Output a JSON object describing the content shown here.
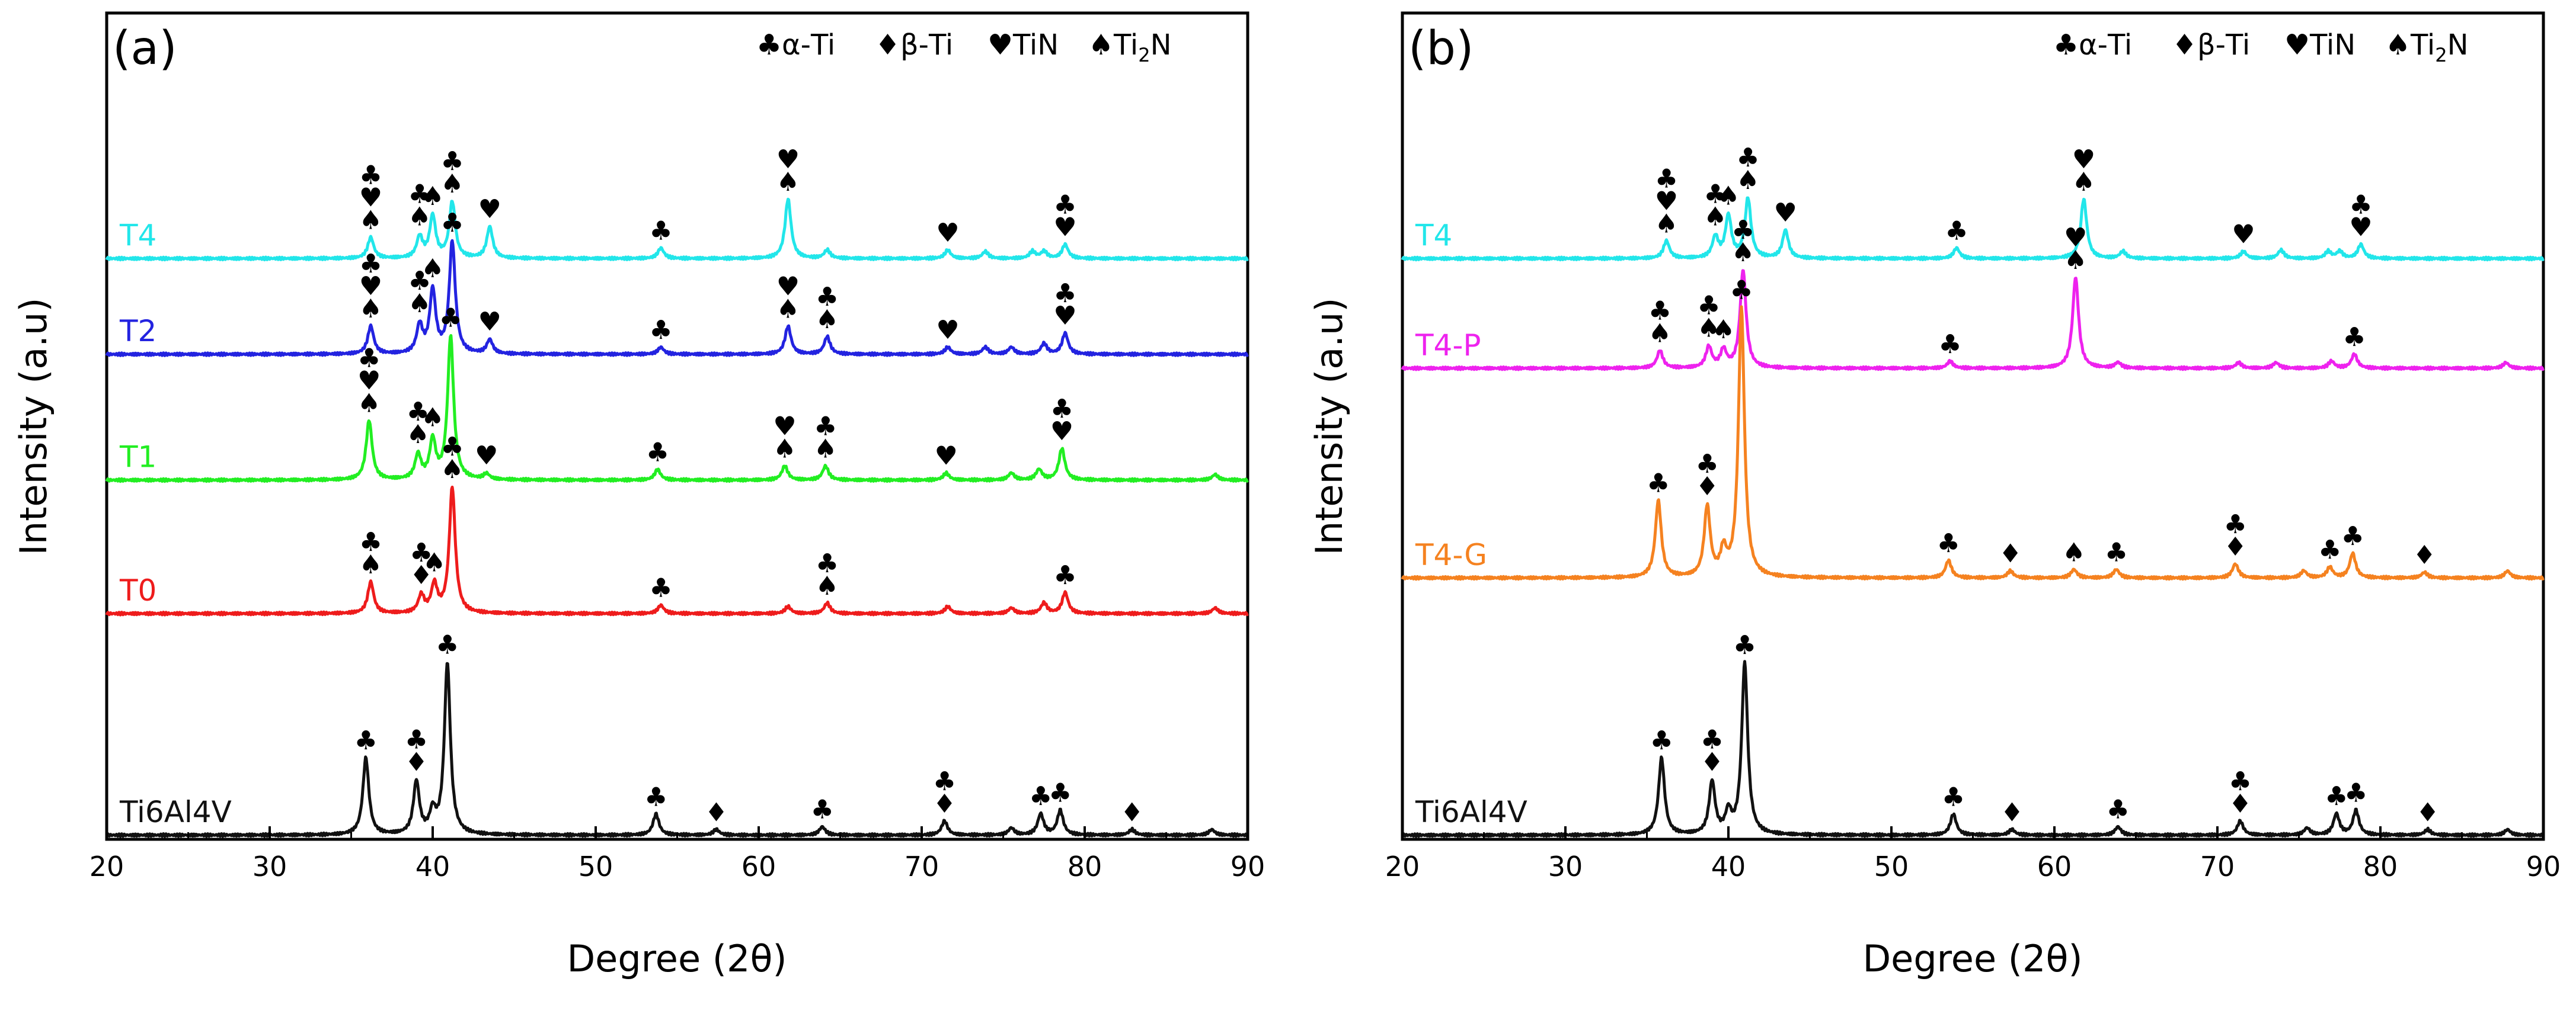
{
  "chart_data": [
    {
      "type": "line",
      "panel": "(a)",
      "xlabel": "Degree (2θ)",
      "ylabel": "Intensity (a.u)",
      "xlim": [
        20,
        90
      ],
      "xticks": [
        "20",
        "30",
        "40",
        "50",
        "60",
        "70",
        "80",
        "90"
      ],
      "legend": [
        {
          "symbol": "♣",
          "label": "α-Ti"
        },
        {
          "symbol": "♦",
          "label": "β-Ti"
        },
        {
          "symbol": "♥",
          "label": "TiN"
        },
        {
          "symbol": "♠",
          "label": "Ti2N"
        }
      ],
      "series": [
        {
          "name": "T4",
          "color": "#22e6ea",
          "baseline": 0.825,
          "peaks": [
            [
              36.2,
              0.03
            ],
            [
              39.2,
              0.03
            ],
            [
              40.0,
              0.06
            ],
            [
              41.2,
              0.08
            ],
            [
              43.5,
              0.045
            ],
            [
              54.0,
              0.015
            ],
            [
              61.8,
              0.085
            ],
            [
              64.2,
              0.012
            ],
            [
              71.6,
              0.012
            ],
            [
              73.9,
              0.01
            ],
            [
              76.8,
              0.01
            ],
            [
              77.5,
              0.01
            ],
            [
              78.8,
              0.02
            ]
          ],
          "markers": [
            [
              36.2,
              "♣♥♠"
            ],
            [
              39.2,
              "♣♠"
            ],
            [
              40.0,
              "♠"
            ],
            [
              41.2,
              "♣♠"
            ],
            [
              43.5,
              "♥"
            ],
            [
              54.0,
              "♣"
            ],
            [
              61.8,
              "♥♠"
            ],
            [
              71.6,
              "♥"
            ],
            [
              78.8,
              "♣♥"
            ]
          ]
        },
        {
          "name": "T2",
          "color": "#2323e0",
          "baseline": 0.688,
          "peaks": [
            [
              36.2,
              0.04
            ],
            [
              39.2,
              0.04
            ],
            [
              40.0,
              0.09
            ],
            [
              41.2,
              0.16
            ],
            [
              43.5,
              0.02
            ],
            [
              54.0,
              0.01
            ],
            [
              61.8,
              0.04
            ],
            [
              64.2,
              0.025
            ],
            [
              71.6,
              0.01
            ],
            [
              73.9,
              0.01
            ],
            [
              75.5,
              0.01
            ],
            [
              77.5,
              0.015
            ],
            [
              78.8,
              0.03
            ]
          ],
          "markers": [
            [
              36.2,
              "♣♥♠"
            ],
            [
              39.2,
              "♣♠"
            ],
            [
              40.0,
              "♠"
            ],
            [
              41.2,
              "♣"
            ],
            [
              43.5,
              "♥"
            ],
            [
              54.0,
              "♣"
            ],
            [
              61.8,
              "♥♠"
            ],
            [
              64.2,
              "♣♠"
            ],
            [
              71.6,
              "♥"
            ],
            [
              78.8,
              "♣♥"
            ]
          ]
        },
        {
          "name": "T1",
          "color": "#22ee22",
          "baseline": 0.508,
          "peaks": [
            [
              36.1,
              0.085
            ],
            [
              39.1,
              0.035
            ],
            [
              40.0,
              0.055
            ],
            [
              41.1,
              0.205
            ],
            [
              43.3,
              0.008
            ],
            [
              53.8,
              0.015
            ],
            [
              61.6,
              0.02
            ],
            [
              64.1,
              0.02
            ],
            [
              71.5,
              0.01
            ],
            [
              75.5,
              0.01
            ],
            [
              77.2,
              0.015
            ],
            [
              78.6,
              0.045
            ],
            [
              88.0,
              0.008
            ]
          ],
          "markers": [
            [
              36.1,
              "♣♥♠"
            ],
            [
              39.1,
              "♣♠"
            ],
            [
              40.0,
              "♠"
            ],
            [
              41.1,
              "♣"
            ],
            [
              43.3,
              "♥"
            ],
            [
              53.8,
              "♣"
            ],
            [
              61.6,
              "♥♠"
            ],
            [
              64.1,
              "♣♠"
            ],
            [
              71.5,
              "♥"
            ],
            [
              78.6,
              "♣♥"
            ]
          ]
        },
        {
          "name": "T0",
          "color": "#ee1c1c",
          "baseline": 0.317,
          "peaks": [
            [
              36.2,
              0.045
            ],
            [
              39.3,
              0.025
            ],
            [
              40.1,
              0.04
            ],
            [
              41.2,
              0.18
            ],
            [
              54.0,
              0.012
            ],
            [
              61.8,
              0.01
            ],
            [
              64.2,
              0.015
            ],
            [
              71.6,
              0.01
            ],
            [
              75.5,
              0.008
            ],
            [
              77.5,
              0.015
            ],
            [
              78.8,
              0.03
            ],
            [
              88.0,
              0.008
            ]
          ],
          "markers": [
            [
              36.2,
              "♣♠"
            ],
            [
              39.3,
              "♣♦"
            ],
            [
              40.1,
              "♠"
            ],
            [
              41.2,
              "♣♠"
            ],
            [
              54.0,
              "♣"
            ],
            [
              64.2,
              "♣♠"
            ],
            [
              78.8,
              "♣"
            ]
          ]
        },
        {
          "name": "Ti6Al4V",
          "color": "#111111",
          "baseline": 0.0,
          "peaks": [
            [
              35.9,
              0.11
            ],
            [
              39.0,
              0.075
            ],
            [
              40.0,
              0.03
            ],
            [
              40.9,
              0.245
            ],
            [
              53.7,
              0.03
            ],
            [
              57.4,
              0.008
            ],
            [
              63.9,
              0.012
            ],
            [
              71.4,
              0.02
            ],
            [
              75.5,
              0.01
            ],
            [
              77.3,
              0.03
            ],
            [
              78.5,
              0.035
            ],
            [
              82.9,
              0.008
            ],
            [
              87.8,
              0.008
            ]
          ],
          "markers": [
            [
              35.9,
              "♣"
            ],
            [
              39.0,
              "♣♦"
            ],
            [
              40.9,
              "♣"
            ],
            [
              53.7,
              "♣"
            ],
            [
              57.4,
              "♦"
            ],
            [
              63.9,
              "♣"
            ],
            [
              71.4,
              "♣♦"
            ],
            [
              77.3,
              "♣"
            ],
            [
              78.5,
              "♣"
            ],
            [
              82.9,
              "♦"
            ]
          ]
        }
      ]
    },
    {
      "type": "line",
      "panel": "(b)",
      "xlabel": "Degree (2θ)",
      "ylabel": "Intensity (a.u)",
      "xlim": [
        20,
        90
      ],
      "xticks": [
        "20",
        "30",
        "40",
        "50",
        "60",
        "70",
        "80",
        "90"
      ],
      "legend": [
        {
          "symbol": "♣",
          "label": "α-Ti"
        },
        {
          "symbol": "♦",
          "label": "β-Ti"
        },
        {
          "symbol": "♥",
          "label": "TiN"
        },
        {
          "symbol": "♠",
          "label": "Ti2N"
        }
      ],
      "series": [
        {
          "name": "T4",
          "color": "#22e6ea",
          "baseline": 0.825,
          "peaks": [
            [
              36.2,
              0.025
            ],
            [
              39.2,
              0.03
            ],
            [
              40.0,
              0.06
            ],
            [
              41.2,
              0.085
            ],
            [
              43.5,
              0.04
            ],
            [
              54.0,
              0.015
            ],
            [
              61.8,
              0.085
            ],
            [
              64.2,
              0.01
            ],
            [
              71.6,
              0.01
            ],
            [
              73.9,
              0.012
            ],
            [
              76.8,
              0.01
            ],
            [
              77.5,
              0.01
            ],
            [
              78.8,
              0.02
            ]
          ],
          "markers": [
            [
              36.2,
              "♣♥♠"
            ],
            [
              39.2,
              "♣♠"
            ],
            [
              40.0,
              "♠"
            ],
            [
              41.2,
              "♣♠"
            ],
            [
              43.5,
              "♥"
            ],
            [
              54.0,
              "♣"
            ],
            [
              61.8,
              "♥♠"
            ],
            [
              71.6,
              "♥"
            ],
            [
              78.8,
              "♣♥"
            ]
          ]
        },
        {
          "name": "T4-P",
          "color": "#ee22ee",
          "baseline": 0.668,
          "peaks": [
            [
              35.8,
              0.025
            ],
            [
              38.8,
              0.03
            ],
            [
              39.7,
              0.025
            ],
            [
              40.9,
              0.14
            ],
            [
              53.6,
              0.01
            ],
            [
              61.3,
              0.13
            ],
            [
              63.9,
              0.008
            ],
            [
              71.3,
              0.008
            ],
            [
              73.6,
              0.008
            ],
            [
              77.0,
              0.01
            ],
            [
              78.4,
              0.02
            ],
            [
              87.7,
              0.008
            ]
          ],
          "markers": [
            [
              35.8,
              "♣♠"
            ],
            [
              38.8,
              "♣♠"
            ],
            [
              39.7,
              "♠"
            ],
            [
              40.9,
              "♣♠"
            ],
            [
              53.6,
              "♣"
            ],
            [
              61.3,
              "♥♠"
            ],
            [
              78.4,
              "♣"
            ]
          ]
        },
        {
          "name": "T4-G",
          "color": "#f58220",
          "baseline": 0.368,
          "peaks": [
            [
              35.7,
              0.11
            ],
            [
              38.7,
              0.1
            ],
            [
              39.7,
              0.035
            ],
            [
              40.8,
              0.385
            ],
            [
              53.5,
              0.025
            ],
            [
              57.3,
              0.01
            ],
            [
              61.2,
              0.012
            ],
            [
              63.8,
              0.012
            ],
            [
              71.1,
              0.02
            ],
            [
              75.3,
              0.01
            ],
            [
              76.9,
              0.015
            ],
            [
              78.3,
              0.035
            ],
            [
              82.7,
              0.008
            ],
            [
              87.8,
              0.01
            ]
          ],
          "markers": [
            [
              35.7,
              "♣"
            ],
            [
              38.7,
              "♣♦"
            ],
            [
              40.8,
              "♣"
            ],
            [
              53.5,
              "♣"
            ],
            [
              57.3,
              "♦"
            ],
            [
              61.2,
              "♠"
            ],
            [
              63.8,
              "♣"
            ],
            [
              71.1,
              "♣♦"
            ],
            [
              76.9,
              "♣"
            ],
            [
              78.3,
              "♣"
            ],
            [
              82.7,
              "♦"
            ]
          ]
        },
        {
          "name": "Ti6Al4V",
          "color": "#111111",
          "baseline": 0.0,
          "peaks": [
            [
              35.9,
              0.11
            ],
            [
              39.0,
              0.075
            ],
            [
              40.0,
              0.03
            ],
            [
              41.0,
              0.245
            ],
            [
              53.8,
              0.03
            ],
            [
              57.4,
              0.008
            ],
            [
              63.9,
              0.012
            ],
            [
              71.4,
              0.02
            ],
            [
              75.5,
              0.01
            ],
            [
              77.3,
              0.03
            ],
            [
              78.5,
              0.035
            ],
            [
              82.9,
              0.008
            ],
            [
              87.8,
              0.008
            ]
          ],
          "markers": [
            [
              35.9,
              "♣"
            ],
            [
              39.0,
              "♣♦"
            ],
            [
              41.0,
              "♣"
            ],
            [
              53.8,
              "♣"
            ],
            [
              57.4,
              "♦"
            ],
            [
              63.9,
              "♣"
            ],
            [
              71.4,
              "♣♦"
            ],
            [
              77.3,
              "♣"
            ],
            [
              78.5,
              "♣"
            ],
            [
              82.9,
              "♦"
            ]
          ]
        }
      ]
    }
  ]
}
